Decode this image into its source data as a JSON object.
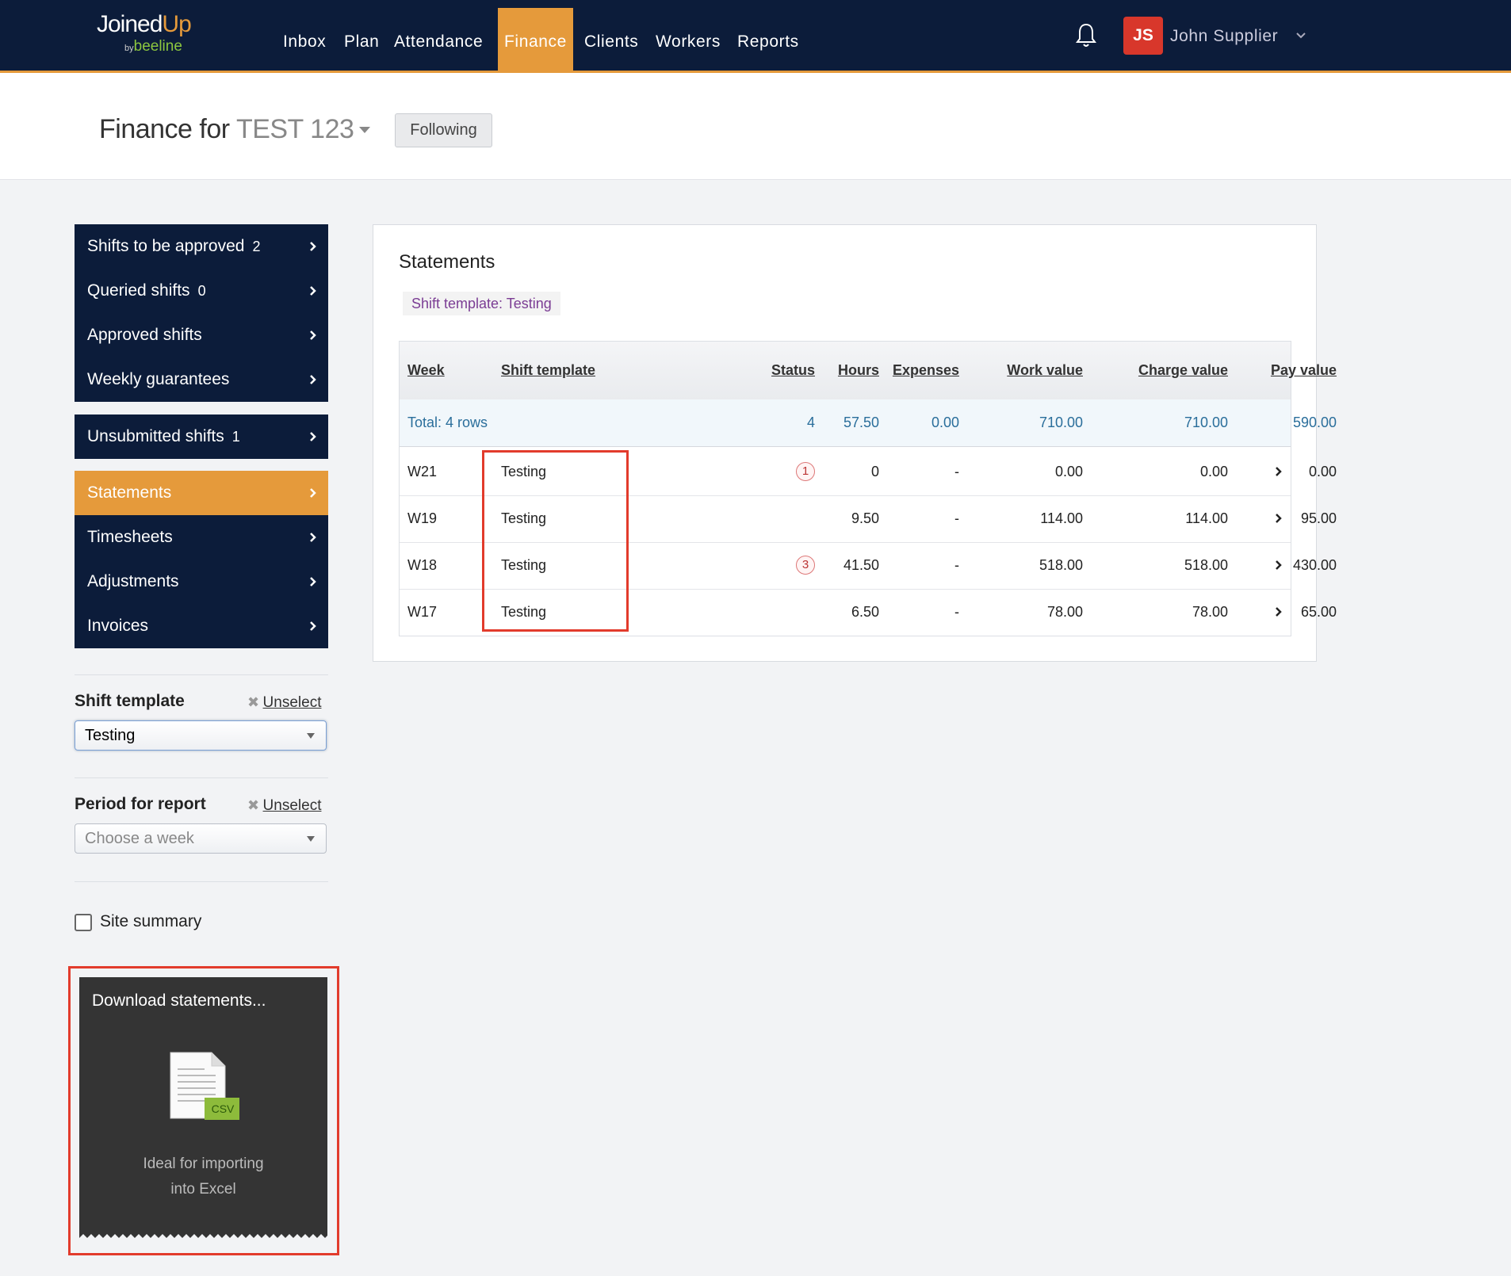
{
  "nav": {
    "logo": {
      "main": "Joined",
      "accent": "Up",
      "by": "by",
      "brand": "beeline"
    },
    "items": [
      "Inbox",
      "Plan",
      "Attendance",
      "Finance",
      "Clients",
      "Workers",
      "Reports"
    ],
    "user": {
      "initials": "JS",
      "name": "John Supplier"
    }
  },
  "header": {
    "title": "Finance for",
    "entity": "TEST 123",
    "button": "Following"
  },
  "sidebar": {
    "groups": [
      [
        {
          "label": "Shifts to be approved",
          "count": 2
        },
        {
          "label": "Queried shifts",
          "count": 0
        },
        {
          "label": "Approved shifts"
        },
        {
          "label": "Weekly guarantees"
        }
      ],
      [
        {
          "label": "Unsubmitted shifts",
          "count": 1
        }
      ],
      [
        {
          "label": "Statements"
        },
        {
          "label": "Timesheets"
        },
        {
          "label": "Adjustments"
        },
        {
          "label": "Invoices"
        }
      ]
    ]
  },
  "filters": {
    "shift_template": {
      "label": "Shift template",
      "unselect": "Unselect",
      "value": "Testing"
    },
    "period": {
      "label": "Period for report",
      "unselect": "Unselect",
      "placeholder": "Choose a week"
    },
    "site_summary": "Site summary"
  },
  "download": {
    "title": "Download statements...",
    "badge": "CSV",
    "lines": [
      "Ideal for importing",
      "into Excel"
    ]
  },
  "statements": {
    "title": "Statements",
    "tag": "Shift template: Testing",
    "columns": {
      "week": "Week",
      "template": "Shift template",
      "status": "Status",
      "hours": "Hours",
      "expenses": "Expenses",
      "work": "Work value",
      "charge": "Charge value",
      "pay": "Pay value"
    },
    "total": {
      "label": "Total: 4 rows",
      "status": 4,
      "hours": "57.50",
      "expenses": "0.00",
      "work": "710.00",
      "charge": "710.00",
      "pay": "590.00"
    },
    "rows": [
      {
        "week": "W21",
        "template": "Testing",
        "status": 1,
        "hours": "0",
        "expenses": "-",
        "work": "0.00",
        "charge": "0.00",
        "pay": "0.00"
      },
      {
        "week": "W19",
        "template": "Testing",
        "status": null,
        "hours": "9.50",
        "expenses": "-",
        "work": "114.00",
        "charge": "114.00",
        "pay": "95.00"
      },
      {
        "week": "W18",
        "template": "Testing",
        "status": 3,
        "hours": "41.50",
        "expenses": "-",
        "work": "518.00",
        "charge": "518.00",
        "pay": "430.00"
      },
      {
        "week": "W17",
        "template": "Testing",
        "status": null,
        "hours": "6.50",
        "expenses": "-",
        "work": "78.00",
        "charge": "78.00",
        "pay": "65.00"
      }
    ]
  }
}
